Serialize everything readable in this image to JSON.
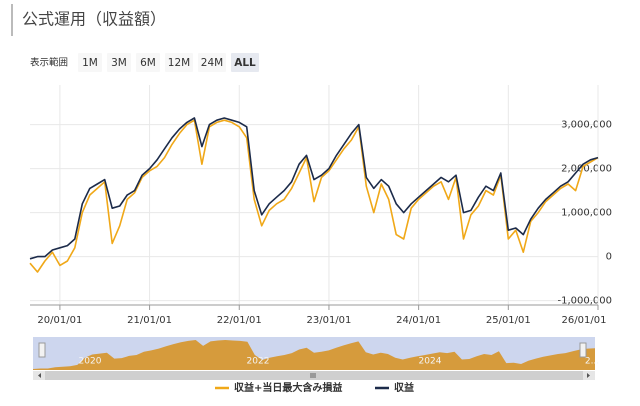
{
  "page": {
    "title": "公式運用（収益額）",
    "range_label": "表示範囲",
    "range_buttons": [
      "1M",
      "3M",
      "6M",
      "12M",
      "24M",
      "ALL"
    ],
    "selected_button": "ALL"
  },
  "chart_data": {
    "type": "line",
    "x": [
      "19/09/01",
      "19/10/01",
      "19/11/01",
      "19/12/01",
      "20/01/01",
      "20/02/01",
      "20/03/01",
      "20/04/01",
      "20/05/01",
      "20/06/01",
      "20/07/01",
      "20/08/01",
      "20/09/01",
      "20/10/01",
      "20/11/01",
      "20/12/01",
      "21/01/01",
      "21/02/01",
      "21/03/01",
      "21/04/01",
      "21/05/01",
      "21/06/01",
      "21/07/01",
      "21/08/01",
      "21/09/01",
      "21/10/01",
      "21/11/01",
      "21/12/01",
      "22/01/01",
      "22/02/01",
      "22/03/01",
      "22/04/01",
      "22/05/01",
      "22/06/01",
      "22/07/01",
      "22/08/01",
      "22/09/01",
      "22/10/01",
      "22/11/01",
      "22/12/01",
      "23/01/01",
      "23/02/01",
      "23/03/01",
      "23/04/01",
      "23/05/01",
      "23/06/01",
      "23/07/01",
      "23/08/01",
      "23/09/01",
      "23/10/01",
      "23/11/01",
      "23/12/01",
      "24/01/01",
      "24/02/01",
      "24/03/01",
      "24/04/01",
      "24/05/01",
      "24/06/01",
      "24/07/01",
      "24/08/01",
      "24/09/01",
      "24/10/01",
      "24/11/01",
      "24/12/01",
      "25/01/01",
      "25/02/01",
      "25/03/01",
      "25/04/01",
      "25/05/01",
      "25/06/01",
      "25/07/01",
      "25/08/01",
      "25/09/01",
      "25/10/01",
      "25/11/01",
      "25/12/01",
      "26/01/01"
    ],
    "series": [
      {
        "name": "収益",
        "color": "#1c2b4a",
        "values": [
          -50000,
          0,
          0,
          150000,
          200000,
          250000,
          400000,
          1200000,
          1550000,
          1650000,
          1750000,
          1100000,
          1150000,
          1400000,
          1500000,
          1850000,
          2000000,
          2200000,
          2450000,
          2700000,
          2900000,
          3050000,
          3150000,
          2500000,
          3000000,
          3100000,
          3150000,
          3100000,
          3050000,
          2950000,
          1500000,
          950000,
          1200000,
          1350000,
          1500000,
          1700000,
          2100000,
          2300000,
          1750000,
          1850000,
          2000000,
          2300000,
          2550000,
          2800000,
          3000000,
          1800000,
          1550000,
          1750000,
          1600000,
          1200000,
          1000000,
          1200000,
          1350000,
          1500000,
          1650000,
          1800000,
          1700000,
          1850000,
          1000000,
          1050000,
          1350000,
          1600000,
          1500000,
          1900000,
          600000,
          650000,
          500000,
          850000,
          1100000,
          1300000,
          1450000,
          1600000,
          1700000,
          1900000,
          2100000,
          2200000,
          2250000
        ]
      },
      {
        "name": "収益+当日最大含み損益",
        "color": "#f0a818",
        "values": [
          -150000,
          -350000,
          -100000,
          100000,
          -200000,
          -100000,
          200000,
          1000000,
          1400000,
          1550000,
          1700000,
          300000,
          700000,
          1300000,
          1450000,
          1800000,
          1950000,
          2050000,
          2250000,
          2550000,
          2800000,
          3000000,
          3100000,
          2100000,
          2950000,
          3050000,
          3100000,
          3050000,
          2950000,
          2700000,
          1300000,
          700000,
          1050000,
          1200000,
          1300000,
          1550000,
          1900000,
          2250000,
          1250000,
          1800000,
          1950000,
          2200000,
          2450000,
          2650000,
          2950000,
          1600000,
          1000000,
          1650000,
          1300000,
          500000,
          400000,
          1100000,
          1300000,
          1450000,
          1600000,
          1700000,
          1300000,
          1800000,
          400000,
          950000,
          1150000,
          1500000,
          1400000,
          1850000,
          400000,
          600000,
          100000,
          800000,
          1000000,
          1250000,
          1400000,
          1550000,
          1650000,
          1500000,
          2050000,
          2150000,
          2250000
        ]
      }
    ],
    "legend_order": [
      1,
      0
    ],
    "xlim": [
      "19/09/01",
      "26/01/01"
    ],
    "xticks": [
      "20/01/01",
      "21/01/01",
      "22/01/01",
      "23/01/01",
      "24/01/01",
      "25/01/01",
      "26/01/01"
    ],
    "ylim": [
      -1100000,
      3900000
    ],
    "yticks": [
      {
        "value": -1000000,
        "label": "-1,000,000"
      },
      0,
      {
        "value": 1000000,
        "label": "1,000,000"
      },
      {
        "value": 2000000,
        "label": "2,000,000"
      },
      {
        "value": 3000000,
        "label": "3,000,000"
      }
    ],
    "grid": true,
    "navigator_labels": [
      "2020",
      "2022",
      "2024",
      "2..."
    ]
  }
}
